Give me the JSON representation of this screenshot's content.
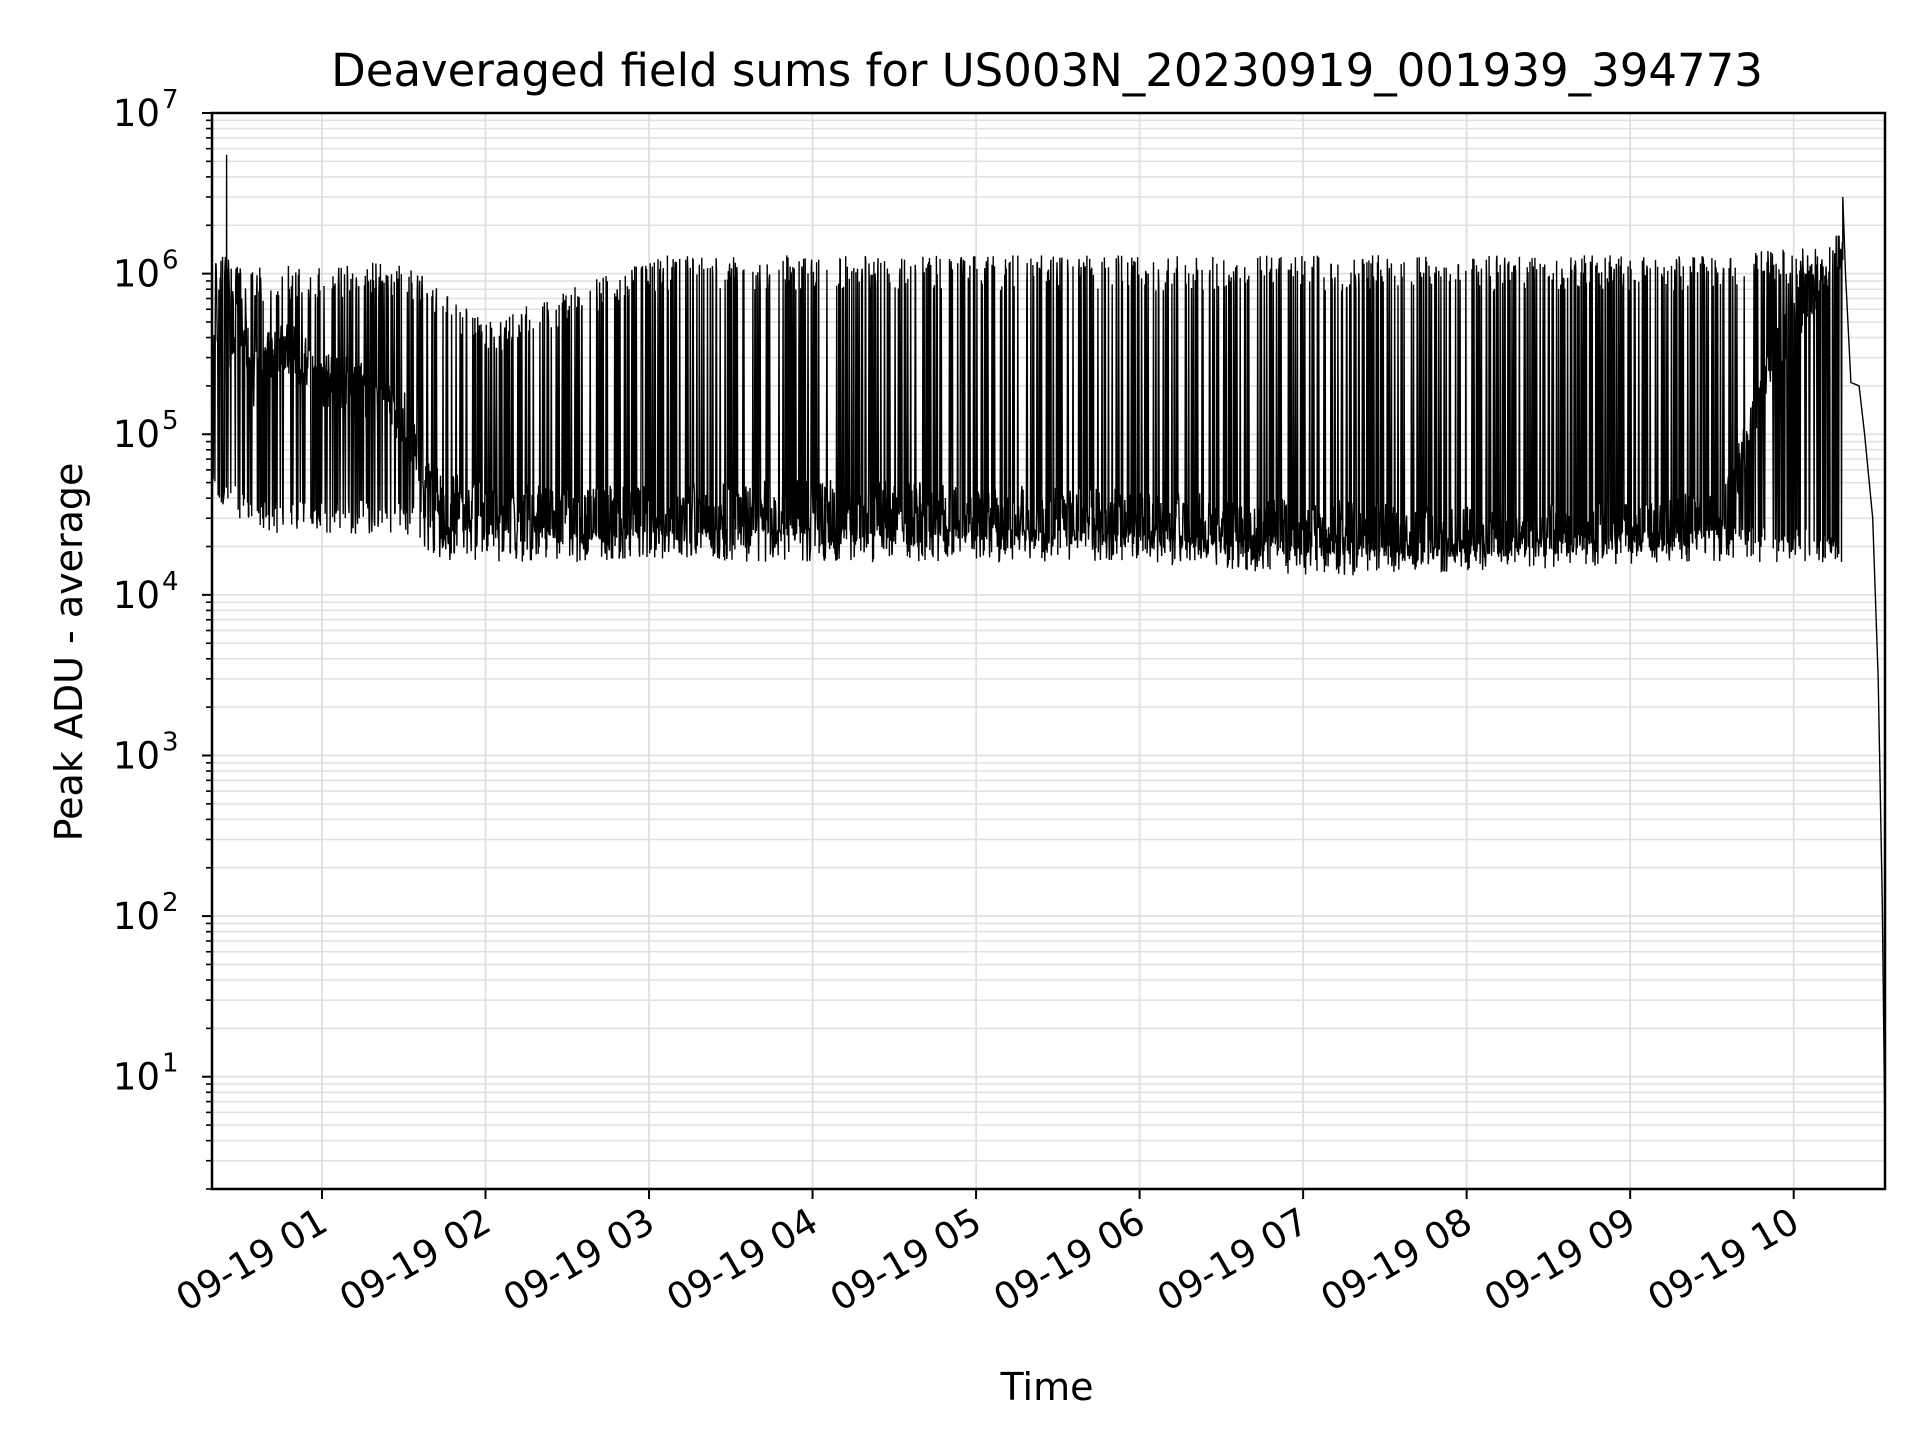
{
  "chart_data": {
    "type": "line",
    "title": "Deaveraged field sums for US003N_20230919_001939_394773",
    "xlabel": "Time",
    "ylabel": "Peak ADU - average",
    "y_scale": "log",
    "ylim": [
      2,
      10000000
    ],
    "xlim": [
      "2023-09-19 00:19:39",
      "2023-09-19 10:33:30"
    ],
    "grid": true,
    "line_color": "#000000",
    "grid_color": "#e0e0e0",
    "x_ticks": [
      {
        "value": "2023-09-19 01:00",
        "label": "09-19 01"
      },
      {
        "value": "2023-09-19 02:00",
        "label": "09-19 02"
      },
      {
        "value": "2023-09-19 03:00",
        "label": "09-19 03"
      },
      {
        "value": "2023-09-19 04:00",
        "label": "09-19 04"
      },
      {
        "value": "2023-09-19 05:00",
        "label": "09-19 05"
      },
      {
        "value": "2023-09-19 06:00",
        "label": "09-19 06"
      },
      {
        "value": "2023-09-19 07:00",
        "label": "09-19 07"
      },
      {
        "value": "2023-09-19 08:00",
        "label": "09-19 08"
      },
      {
        "value": "2023-09-19 09:00",
        "label": "09-19 09"
      },
      {
        "value": "2023-09-19 10:00",
        "label": "09-19 10"
      }
    ],
    "y_ticks": [
      {
        "value": 10,
        "base": "10",
        "exp": "1"
      },
      {
        "value": 100,
        "base": "10",
        "exp": "2"
      },
      {
        "value": 1000,
        "base": "10",
        "exp": "3"
      },
      {
        "value": 10000,
        "base": "10",
        "exp": "4"
      },
      {
        "value": 100000,
        "base": "10",
        "exp": "5"
      },
      {
        "value": 1000000,
        "base": "10",
        "exp": "6"
      },
      {
        "value": 10000000,
        "base": "10",
        "exp": "7"
      }
    ],
    "series": [
      {
        "points": [
          [
            "2023-09-19 00:19:39",
            80000
          ],
          [
            "2023-09-19 00:21:00",
            1100000
          ],
          [
            "2023-09-19 00:22:00",
            150000
          ],
          [
            "2023-09-19 00:23:00",
            1400000
          ],
          [
            "2023-09-19 00:24:00",
            900000
          ],
          [
            "2023-09-19 00:25:00",
            5500000
          ],
          [
            "2023-09-19 00:26:00",
            300000
          ],
          [
            "2023-09-19 00:30:00",
            500000
          ],
          [
            "2023-09-19 00:35:00",
            200000
          ],
          [
            "2023-09-19 00:45:00",
            350000
          ],
          [
            "2023-09-19 01:00:00",
            200000
          ],
          [
            "2023-09-19 01:15:00",
            180000
          ],
          [
            "2023-09-19 01:30:00",
            120000
          ],
          [
            "2023-09-19 01:40:00",
            40000
          ],
          [
            "2023-09-19 02:00:00",
            30000
          ],
          [
            "2023-09-19 03:00:00",
            30000
          ],
          [
            "2023-09-19 04:00:00",
            33000
          ],
          [
            "2023-09-19 05:00:00",
            30000
          ],
          [
            "2023-09-19 06:00:00",
            28000
          ],
          [
            "2023-09-19 07:00:00",
            25000
          ],
          [
            "2023-09-19 08:00:00",
            22000
          ],
          [
            "2023-09-19 09:00:00",
            25000
          ],
          [
            "2023-09-19 09:35:00",
            30000
          ],
          [
            "2023-09-19 09:50:00",
            200000
          ],
          [
            "2023-09-19 10:05:00",
            700000
          ],
          [
            "2023-09-19 10:15:00",
            1000000
          ],
          [
            "2023-09-19 10:18:00",
            3000000
          ],
          [
            "2023-09-19 10:19:00",
            1000000
          ],
          [
            "2023-09-19 10:21:00",
            210000
          ],
          [
            "2023-09-19 10:24:00",
            200000
          ],
          [
            "2023-09-19 10:26:00",
            100000
          ],
          [
            "2023-09-19 10:29:00",
            30000
          ],
          [
            "2023-09-19 10:31:00",
            3000
          ],
          [
            "2023-09-19 10:32:30",
            120
          ],
          [
            "2023-09-19 10:33:30",
            4
          ]
        ],
        "oscillation": {
          "baseline_lower_envelope": [
            [
              "2023-09-19 00:19:39",
              45000
            ],
            [
              "2023-09-19 00:40:00",
              30000
            ],
            [
              "2023-09-19 01:30:00",
              30000
            ],
            [
              "2023-09-19 01:45:00",
              20000
            ],
            [
              "2023-09-19 06:00:00",
              20000
            ],
            [
              "2023-09-19 07:00:00",
              16000
            ],
            [
              "2023-09-19 09:30:00",
              20000
            ]
          ],
          "spike_upper_envelope": [
            [
              "2023-09-19 00:19:39",
              1100000
            ],
            [
              "2023-09-19 01:30:00",
              1200000
            ],
            [
              "2023-09-19 02:00:00",
              500000
            ],
            [
              "2023-09-19 03:00:00",
              1300000
            ],
            [
              "2023-09-19 09:30:00",
              1300000
            ],
            [
              "2023-09-19 10:10:00",
              1500000
            ]
          ]
        }
      }
    ]
  }
}
